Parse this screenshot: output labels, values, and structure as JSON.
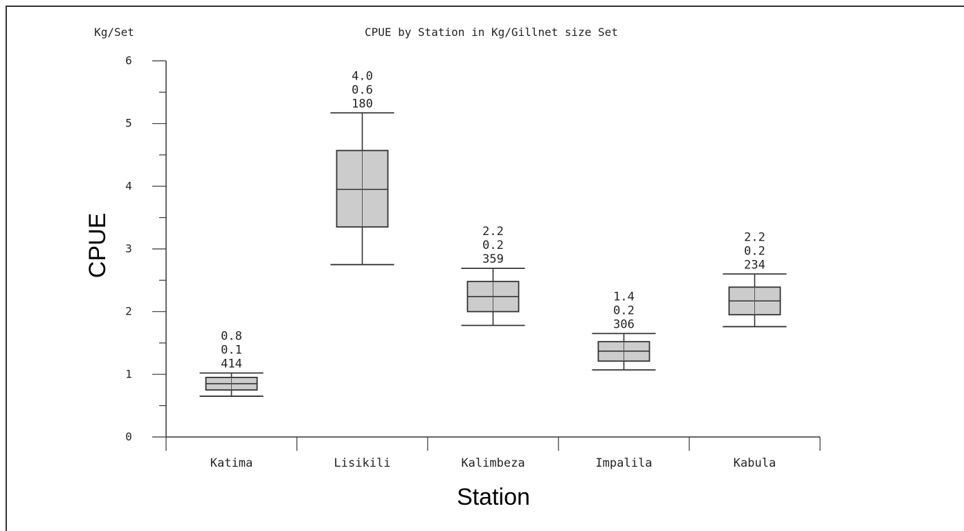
{
  "chart_data": {
    "type": "box",
    "title": "CPUE by Station in Kg/Gillnet size Set",
    "unit_label": "Kg/Set",
    "xlabel": "Station",
    "ylabel": "CPUE",
    "ylim": [
      0,
      6
    ],
    "yticks": [
      0,
      1,
      2,
      3,
      4,
      5,
      6
    ],
    "categories": [
      "Katima",
      "Lisikili",
      "Kalimbeza",
      "Impalila",
      "Kabula"
    ],
    "boxes": [
      {
        "station": "Katima",
        "whisker_low": 0.65,
        "q1": 0.75,
        "median": 0.85,
        "q3": 0.95,
        "whisker_high": 1.02,
        "annotations": [
          "0.8",
          "0.1",
          "414"
        ]
      },
      {
        "station": "Lisikili",
        "whisker_low": 2.75,
        "q1": 3.35,
        "median": 3.95,
        "q3": 4.57,
        "whisker_high": 5.17,
        "annotations": [
          "4.0",
          "0.6",
          "180"
        ]
      },
      {
        "station": "Kalimbeza",
        "whisker_low": 1.78,
        "q1": 2.0,
        "median": 2.24,
        "q3": 2.48,
        "whisker_high": 2.69,
        "annotations": [
          "2.2",
          "0.2",
          "359"
        ]
      },
      {
        "station": "Impalila",
        "whisker_low": 1.07,
        "q1": 1.21,
        "median": 1.37,
        "q3": 1.52,
        "whisker_high": 1.65,
        "annotations": [
          "1.4",
          "0.2",
          "306"
        ]
      },
      {
        "station": "Kabula",
        "whisker_low": 1.76,
        "q1": 1.95,
        "median": 2.17,
        "q3": 2.39,
        "whisker_high": 2.6,
        "annotations": [
          "2.2",
          "0.2",
          "234"
        ]
      }
    ],
    "box_fill": "#cccccc",
    "line_color": "#333333",
    "grid": false
  }
}
